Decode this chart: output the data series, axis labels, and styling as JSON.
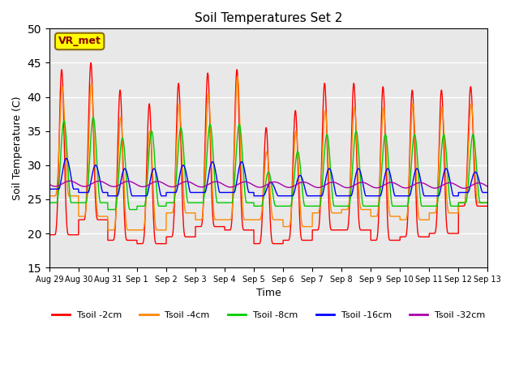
{
  "title": "Soil Temperatures Set 2",
  "xlabel": "Time",
  "ylabel": "Soil Temperature (C)",
  "ylim": [
    15,
    50
  ],
  "background_color": "#e8e8e8",
  "plot_bg_color": "#e8e8e8",
  "series_colors": {
    "Tsoil -2cm": "#ff0000",
    "Tsoil -4cm": "#ff8800",
    "Tsoil -8cm": "#00cc00",
    "Tsoil -16cm": "#0000ff",
    "Tsoil -32cm": "#aa00aa"
  },
  "annotation_text": "VR_met",
  "annotation_box_color": "#ffff00",
  "annotation_box_edge": "#8B6914",
  "yticks": [
    15,
    20,
    25,
    30,
    35,
    40,
    45,
    50
  ],
  "xtick_labels": [
    "Aug 29",
    "Aug 30",
    "Aug 31",
    "Sep 1",
    "Sep 2",
    "Sep 3",
    "Sep 4",
    "Sep 5",
    "Sep 6",
    "Sep 7",
    "Sep 8",
    "Sep 9",
    "Sep 10",
    "Sep 11",
    "Sep 12",
    "Sep 13"
  ],
  "day_peaks_2cm": [
    44.0,
    45.0,
    41.0,
    39.0,
    42.0,
    43.5,
    44.0,
    35.5,
    38.0,
    42.0,
    42.0,
    41.5,
    41.0,
    41.0,
    41.5
  ],
  "day_troughs_2cm": [
    19.8,
    22.0,
    19.0,
    18.5,
    19.5,
    21.0,
    20.5,
    18.5,
    19.0,
    20.5,
    20.5,
    19.0,
    19.5,
    20.0,
    24.0
  ],
  "day_peaks_4cm": [
    41.5,
    42.0,
    37.0,
    35.0,
    39.0,
    40.5,
    43.0,
    32.0,
    35.0,
    38.0,
    38.5,
    38.5,
    39.0,
    38.5,
    39.0
  ],
  "day_troughs_4cm": [
    25.5,
    22.5,
    20.5,
    20.5,
    23.0,
    22.0,
    22.0,
    22.0,
    21.0,
    23.0,
    23.5,
    22.5,
    22.0,
    23.0,
    24.5
  ],
  "day_peaks_8cm": [
    36.5,
    37.0,
    34.0,
    35.0,
    35.5,
    36.0,
    36.0,
    29.0,
    32.0,
    34.5,
    35.0,
    34.5,
    34.5,
    34.5,
    34.5
  ],
  "day_troughs_8cm": [
    24.5,
    24.5,
    23.5,
    24.0,
    24.5,
    24.5,
    24.5,
    24.0,
    24.0,
    24.0,
    24.0,
    24.0,
    24.0,
    24.0,
    24.5
  ],
  "day_peaks_16cm": [
    31.0,
    30.0,
    29.5,
    29.5,
    30.0,
    30.5,
    30.5,
    27.5,
    28.5,
    29.5,
    29.5,
    29.5,
    29.5,
    29.5,
    29.0
  ],
  "day_troughs_16cm": [
    26.5,
    26.0,
    25.5,
    25.5,
    26.0,
    26.0,
    26.0,
    25.5,
    25.5,
    25.5,
    25.5,
    25.5,
    25.5,
    25.5,
    26.0
  ],
  "mean_32cm": 27.3,
  "amp_32cm": 0.4
}
